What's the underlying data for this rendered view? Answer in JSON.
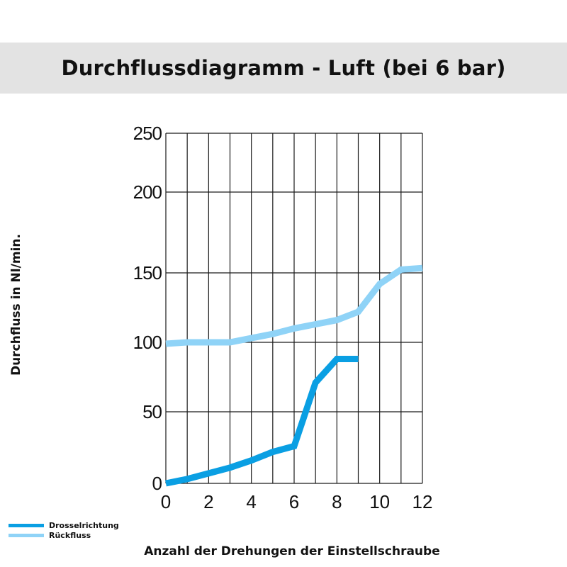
{
  "header": {
    "title": "Durchflussdiagramm - Luft (bei 6 bar)"
  },
  "colors": {
    "title_bg": "#e3e3e3",
    "grid": "#1a1a1a",
    "drossel": "#0a9fe3",
    "rueck": "#8fd3f7"
  },
  "chart_data": {
    "type": "line",
    "title": "Durchflussdiagramm - Luft (bei 6 bar)",
    "xlabel": "Anzahl der Drehungen der Einstellschraube",
    "ylabel": "Durchfluss in Nl/min.",
    "xlim": [
      0,
      12
    ],
    "ylim": [
      0,
      250
    ],
    "grid": true,
    "legend_position": "bottom-left",
    "x_ticks": [
      0,
      2,
      4,
      6,
      8,
      10,
      12
    ],
    "y_ticks": [
      0,
      50,
      100,
      150,
      200,
      250
    ],
    "x_gridlines": [
      0,
      1,
      2,
      3,
      4,
      5,
      6,
      7,
      8,
      9,
      10,
      11,
      12
    ],
    "y_gridlines": [
      0,
      50,
      100,
      150,
      200,
      250
    ],
    "series": [
      {
        "name": "Drosselrichtung",
        "color": "#0a9fe3",
        "x": [
          0,
          1,
          2,
          3,
          4,
          5,
          6,
          7,
          8,
          9
        ],
        "y": [
          0,
          3,
          7,
          11,
          16,
          22,
          26,
          71,
          88,
          88
        ]
      },
      {
        "name": "Rückfluss",
        "color": "#8fd3f7",
        "x": [
          0,
          1,
          2,
          3,
          4,
          5,
          6,
          7,
          8,
          9,
          10,
          11,
          12
        ],
        "y": [
          99,
          100,
          100,
          100,
          103,
          106,
          110,
          113,
          116,
          122,
          142,
          152,
          153
        ]
      }
    ]
  }
}
